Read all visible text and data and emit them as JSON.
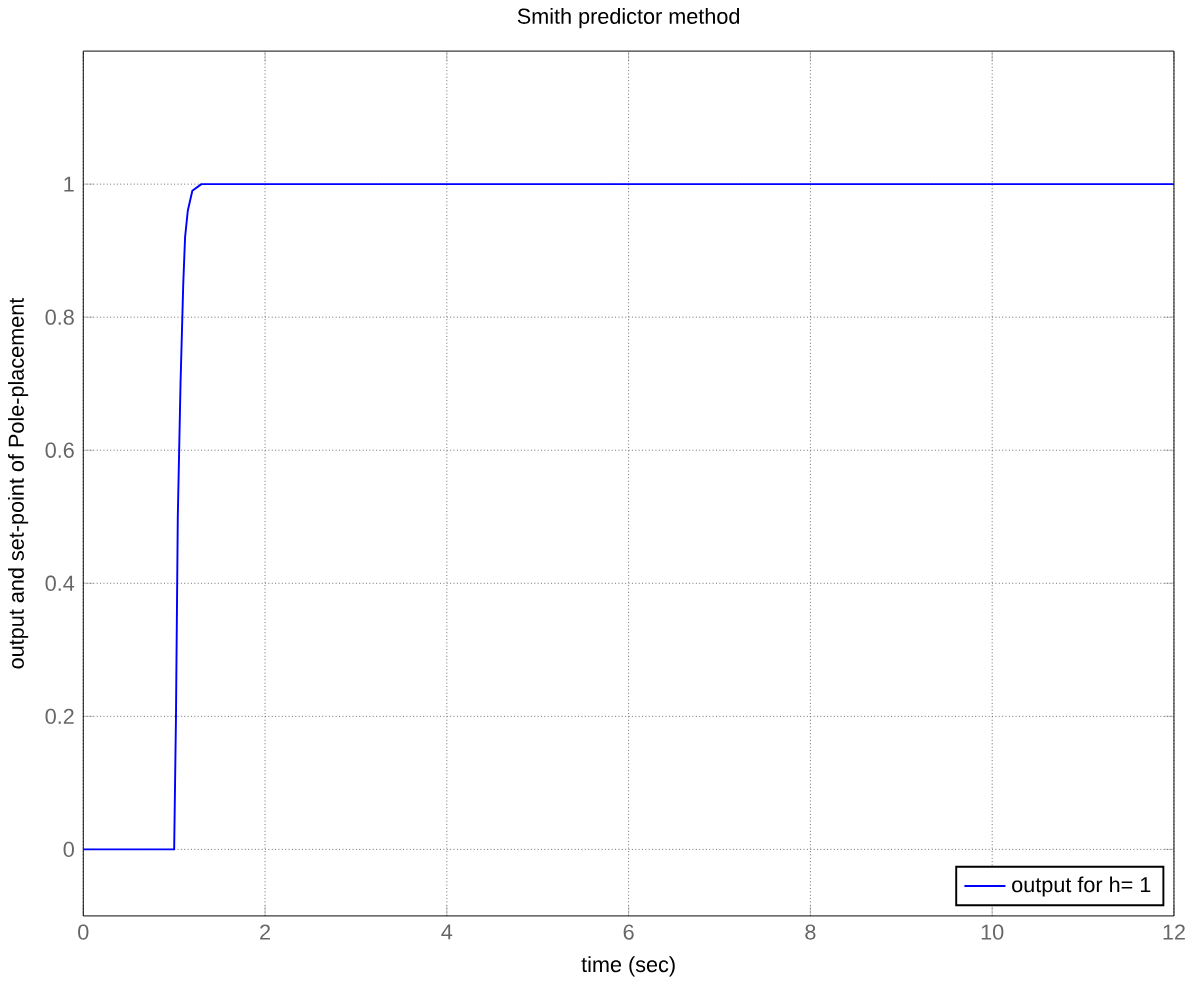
{
  "chart_data": {
    "type": "line",
    "title": "Smith predictor method",
    "xlabel": "time (sec)",
    "ylabel": "output and set-point of Pole-placement",
    "series": [
      {
        "name": "output for h= 1",
        "color": "#0000ff",
        "x": [
          0,
          1.0,
          1.02,
          1.04,
          1.07,
          1.1,
          1.12,
          1.15,
          1.2,
          1.3,
          12
        ],
        "values": [
          0,
          0,
          0.2,
          0.5,
          0.7,
          0.85,
          0.92,
          0.96,
          0.99,
          1,
          1
        ]
      }
    ],
    "xlim": [
      0,
      12
    ],
    "ylim": [
      -0.1,
      1.2
    ],
    "xticks": [
      0,
      2,
      4,
      6,
      8,
      10,
      12
    ],
    "yticks": [
      0,
      0.2,
      0.4,
      0.6,
      0.8,
      1
    ],
    "grid": true,
    "legend": "bottom right",
    "marker": "none",
    "line_style": "solid"
  }
}
